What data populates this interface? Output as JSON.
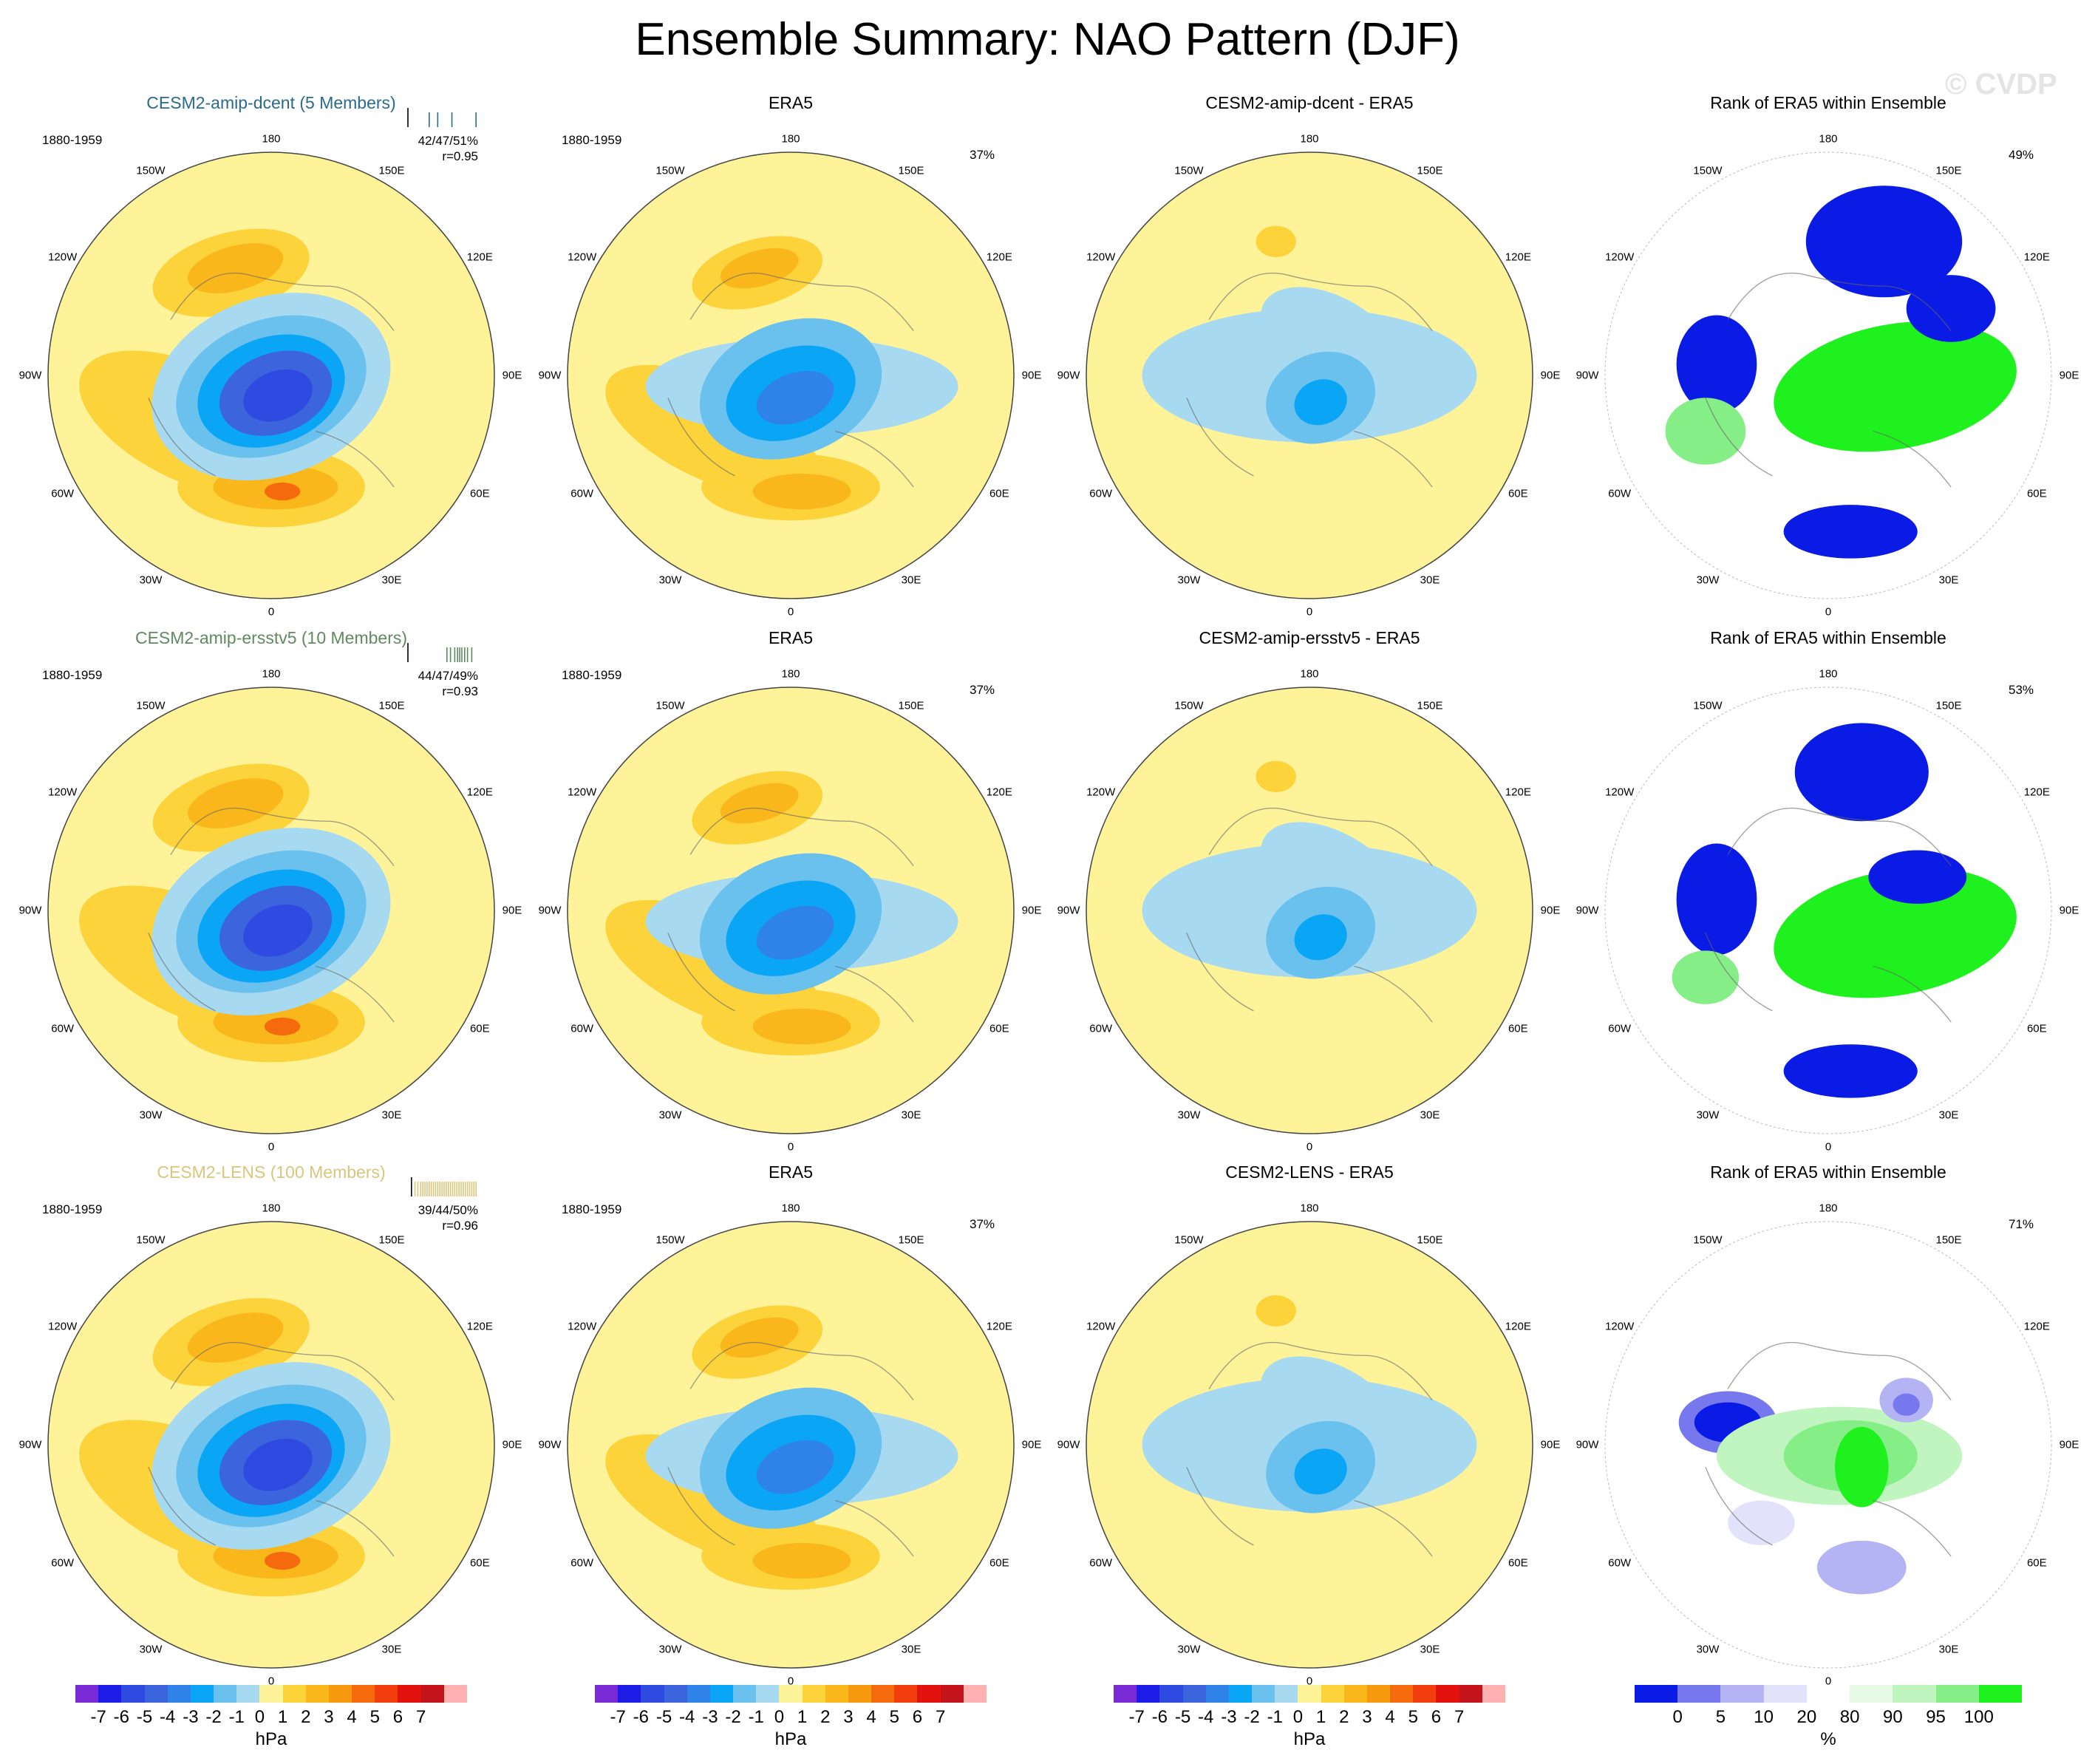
{
  "title": "Ensemble Summary: NAO Pattern (DJF)",
  "watermark": "© CVDP",
  "chart_data": {
    "type": "polar-map-panels",
    "projection": "north polar stereographic",
    "longitude_labels": [
      "180",
      "150E",
      "120E",
      "90E",
      "60E",
      "30E",
      "0",
      "30W",
      "60W",
      "90W",
      "120W",
      "150W"
    ],
    "colorbars": {
      "pressure": {
        "unit": "hPa",
        "ticks": [
          "-7",
          "-6",
          "-5",
          "-4",
          "-3",
          "-2",
          "-1",
          "0",
          "1",
          "2",
          "3",
          "4",
          "5",
          "6",
          "7"
        ],
        "colors": [
          "#7a2bd6",
          "#1c1ce6",
          "#2e4ae0",
          "#3c64dc",
          "#2f82e8",
          "#0ba5f5",
          "#6ac1ee",
          "#a7d9f1",
          "#fff39a",
          "#fcd33a",
          "#f9b71b",
          "#f79a10",
          "#f46a0d",
          "#f23e0c",
          "#e2120e",
          "#c2141a",
          "#ffb0b0"
        ]
      },
      "rank": {
        "unit": "%",
        "ticks": [
          "0",
          "5",
          "10",
          "20",
          "80",
          "90",
          "95",
          "100"
        ],
        "colors": [
          "#0b1be6",
          "#7878ee",
          "#b4b4f4",
          "#e2e2fa",
          "#ffffff",
          "#e6fae6",
          "#c0f5c0",
          "#86ee86",
          "#1ef11e"
        ]
      }
    },
    "rows": [
      {
        "model": "CESM2-amip-dcent (5 Members)",
        "model_color": "#2a6a8c",
        "period": "1880-1959",
        "stats_pct": "42/47/51%",
        "stats_r": "r=0.95",
        "member_ticks": [
          0.0,
          0.3,
          0.42,
          0.62,
          0.96
        ],
        "ref_title": "ERA5",
        "ref_period": "1880-1959",
        "ref_pct": "37%",
        "diff_title": "CESM2-amip-dcent - ERA5",
        "rank_title": "Rank of ERA5 within Ensemble",
        "rank_pct": "49%"
      },
      {
        "model": "CESM2-amip-ersstv5 (10 Members)",
        "model_color": "#5f8a5f",
        "period": "1880-1959",
        "stats_pct": "44/47/49%",
        "stats_r": "r=0.93",
        "member_ticks": [
          0.0,
          0.55,
          0.6,
          0.66,
          0.7,
          0.73,
          0.76,
          0.8,
          0.84,
          0.9
        ],
        "ref_title": "ERA5",
        "ref_period": "1880-1959",
        "ref_pct": "37%",
        "diff_title": "CESM2-amip-ersstv5 - ERA5",
        "rank_title": "Rank of ERA5 within Ensemble",
        "rank_pct": "53%"
      },
      {
        "model": "CESM2-LENS (100 Members)",
        "model_color": "#d8c67c",
        "period": "1880-1959",
        "stats_pct": "39/44/50%",
        "stats_r": "r=0.96",
        "member_ticks": [
          0.05,
          0.1,
          0.14,
          0.18,
          0.21,
          0.24,
          0.27,
          0.3,
          0.33,
          0.36,
          0.39,
          0.42,
          0.45,
          0.48,
          0.51,
          0.54,
          0.57,
          0.6,
          0.63,
          0.66,
          0.69,
          0.72,
          0.75,
          0.78,
          0.81,
          0.84,
          0.87,
          0.9,
          0.93,
          0.96
        ],
        "ref_title": "ERA5",
        "ref_period": "1880-1959",
        "ref_pct": "37%",
        "diff_title": "CESM2-LENS - ERA5",
        "rank_title": "Rank of ERA5 within Ensemble",
        "rank_pct": "71%"
      }
    ]
  }
}
